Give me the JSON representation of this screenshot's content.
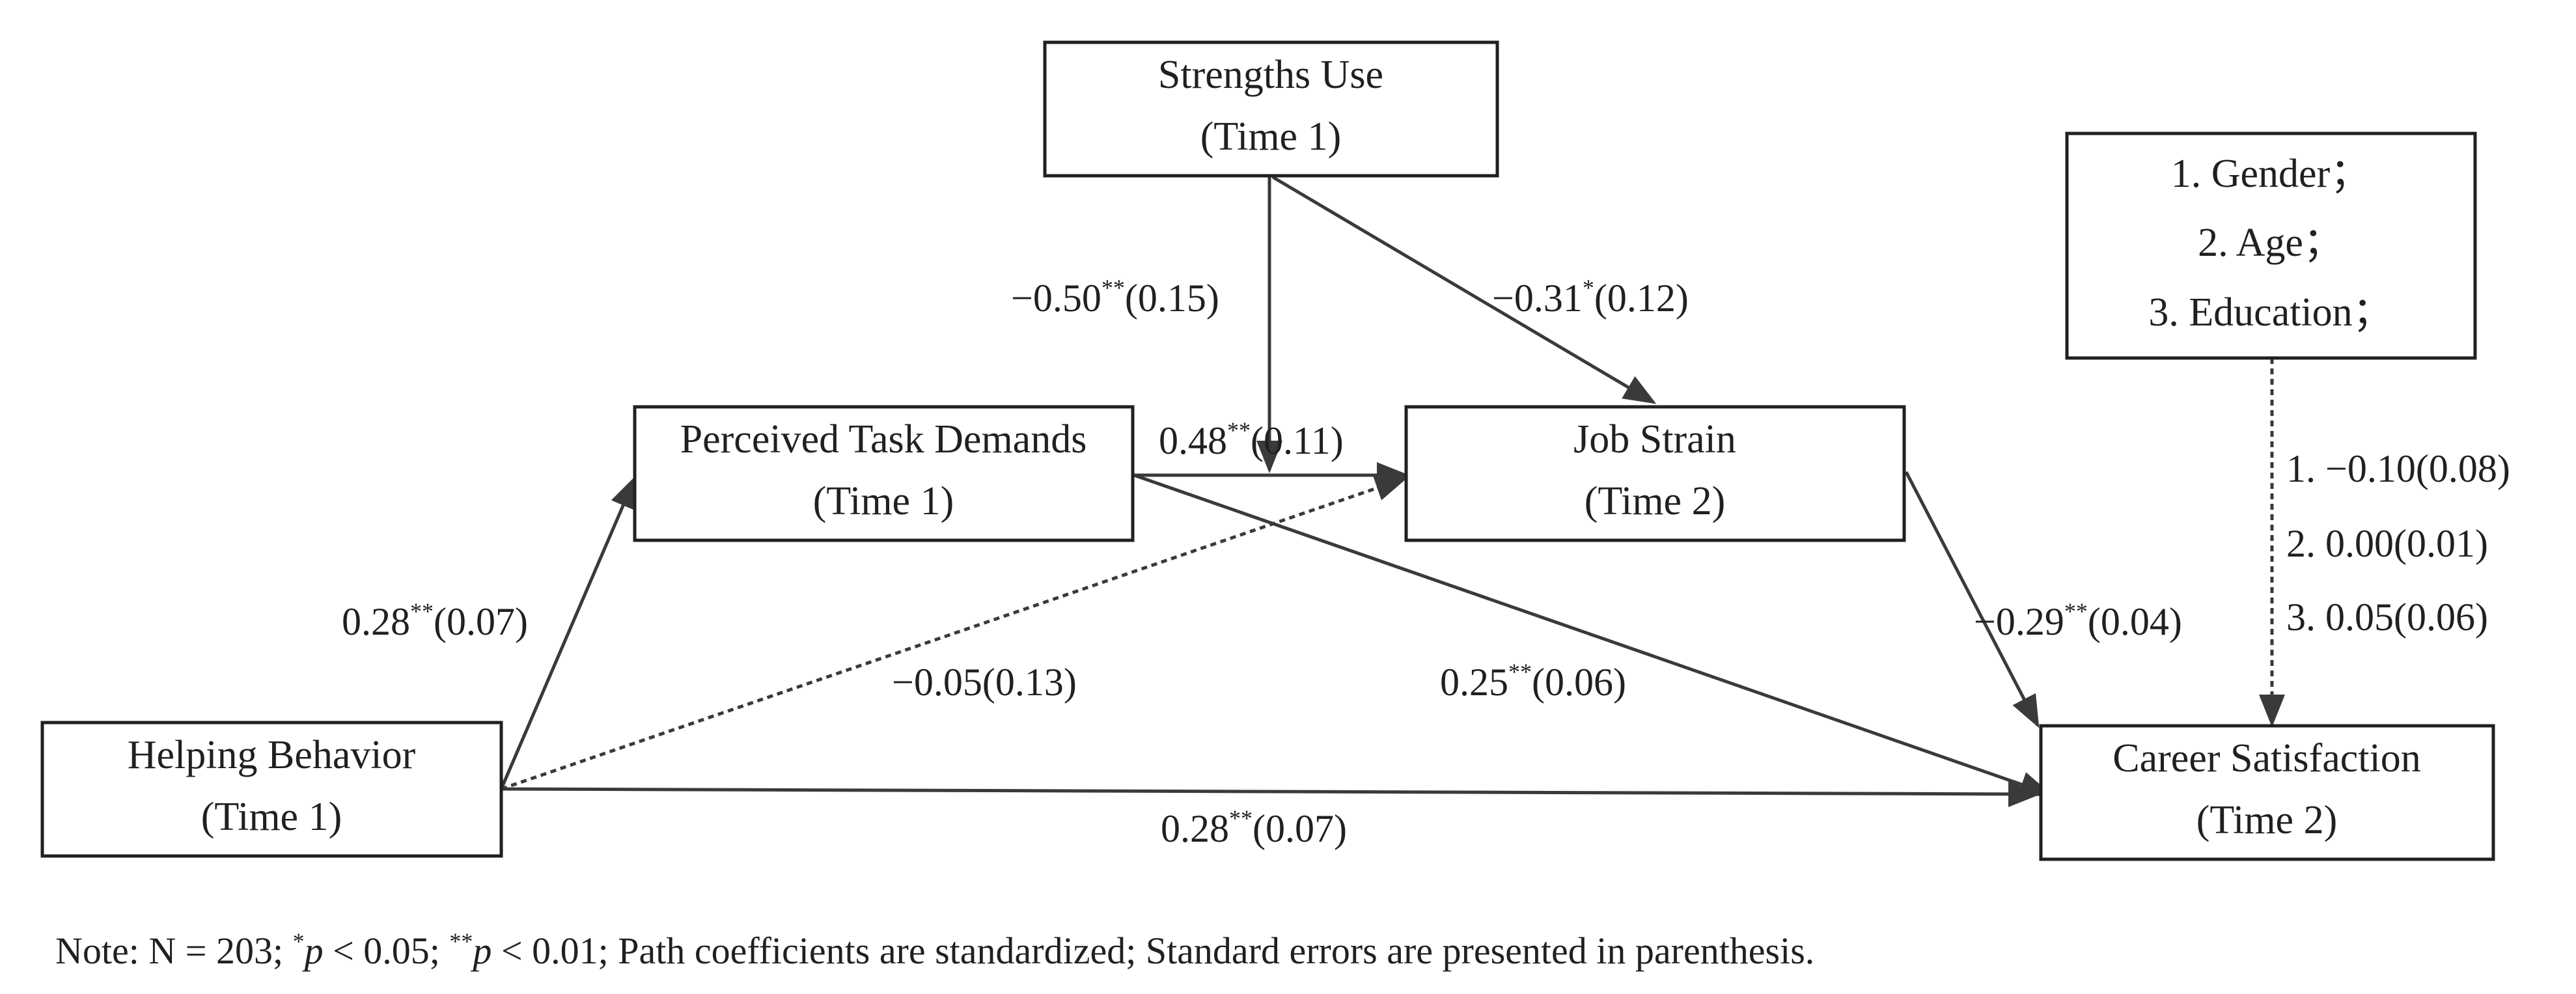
{
  "nodes": {
    "strengths_use": {
      "line1": "Strengths Use",
      "line2": "(Time 1)"
    },
    "controls": {
      "line1": "1. Gender；",
      "line2": "2. Age；",
      "line3": "3. Education；"
    },
    "perceived_task_demands": {
      "line1": "Perceived Task Demands",
      "line2": "(Time 1)"
    },
    "job_strain": {
      "line1": "Job Strain",
      "line2": "(Time 2)"
    },
    "helping_behavior": {
      "line1": "Helping Behavior",
      "line2": "(Time 1)"
    },
    "career_satisfaction": {
      "line1": "Career Satisfaction",
      "line2": "(Time 2)"
    }
  },
  "paths": {
    "su_to_ptd_jobstrain_moderation": {
      "value": "−0.50",
      "sig": "**",
      "se": "(0.15)"
    },
    "su_to_jobstrain": {
      "value": "−0.31",
      "sig": "*",
      "se": "(0.12)"
    },
    "ptd_to_jobstrain": {
      "value": "0.48",
      "sig": "**",
      "se": "(0.11)"
    },
    "hb_to_ptd": {
      "value": "0.28",
      "sig": "**",
      "se": "(0.07)"
    },
    "hb_to_jobstrain": {
      "value": "−0.05(0.13)"
    },
    "ptd_to_career": {
      "value": "0.25",
      "sig": "**",
      "se": "(0.06)"
    },
    "jobstrain_to_career": {
      "value": "−0.29",
      "sig": "**",
      "se": "(0.04)"
    },
    "hb_to_career": {
      "value": "0.28",
      "sig": "**",
      "se": "(0.07)"
    },
    "controls_to_career": {
      "line1": "1. −0.10(0.08)",
      "line2": "2. 0.00(0.01)",
      "line3": "3. 0.05(0.06)"
    }
  },
  "note": {
    "prefix": "Note: N = 203; ",
    "sig1_mark": "*",
    "p1": "p",
    "p1_rest": " < 0.05; ",
    "sig2_mark": "**",
    "p2": "p",
    "p2_rest": " < 0.01; Path coefficients are standardized; Standard errors are presented in parenthesis."
  },
  "colors": {
    "stroke": "#231f20",
    "arrow": "#3a3a3a",
    "background": "#ffffff"
  }
}
